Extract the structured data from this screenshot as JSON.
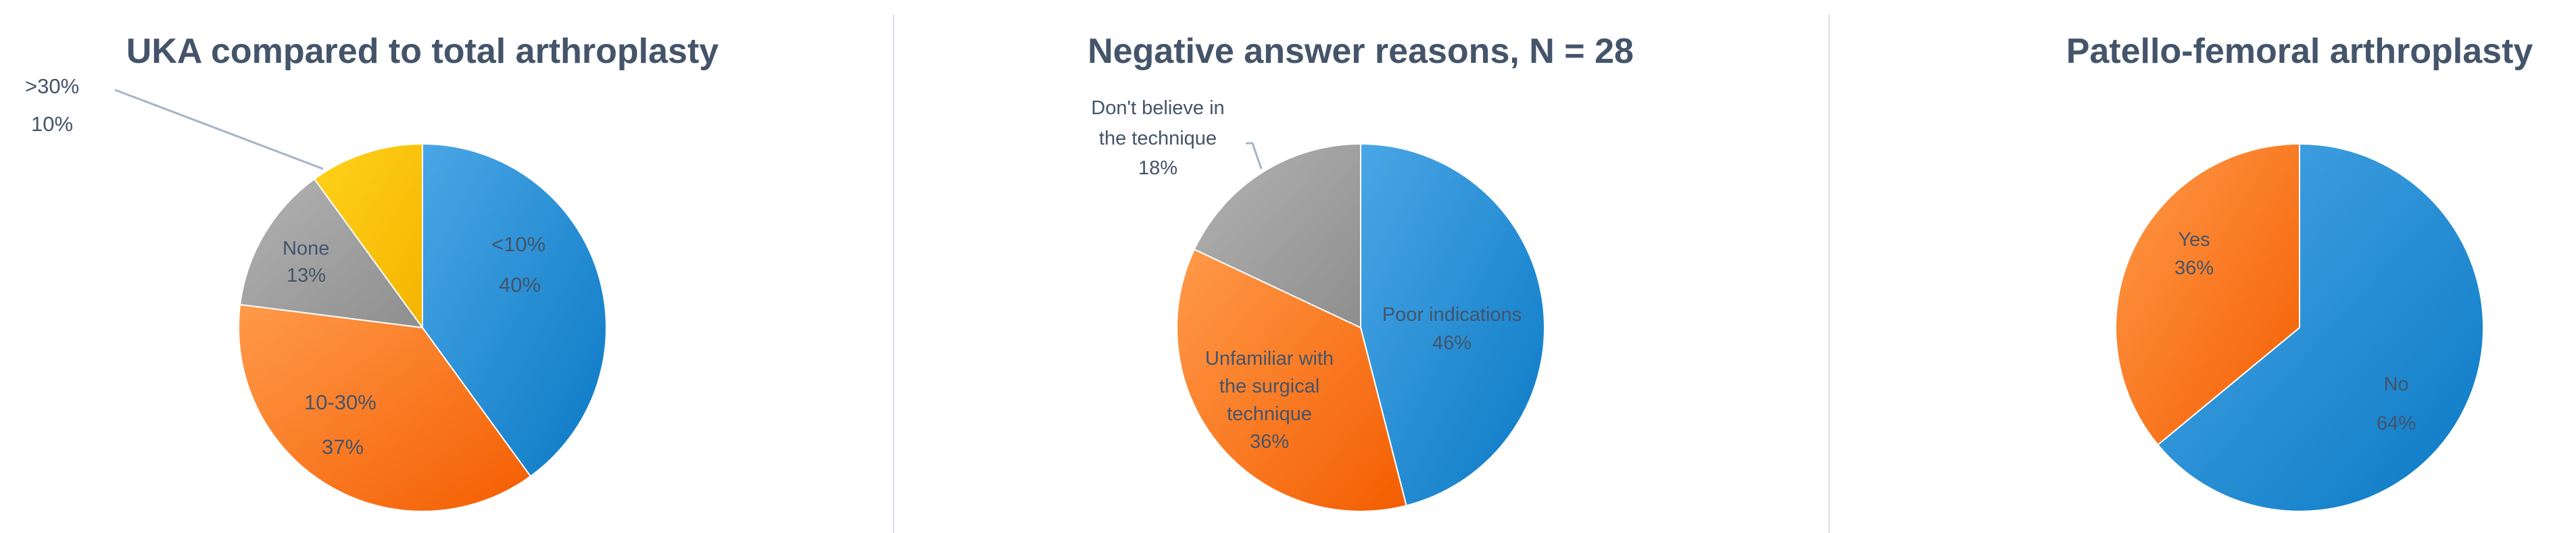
{
  "chart_data": [
    {
      "type": "pie",
      "title": "UKA compared to total arthroplasty",
      "unit": "%",
      "slices": [
        {
          "label": "<10%",
          "value": 40,
          "value_label": "40%",
          "color": "#1f8fd8"
        },
        {
          "label": "10-30%",
          "value": 37,
          "value_label": "37%",
          "color": "#fb7a22"
        },
        {
          "label": "None",
          "value": 13,
          "value_label": "13%",
          "color": "#a1a1a1"
        },
        {
          "label": ">30%",
          "value": 10,
          "value_label": "10%",
          "color": "#ffc000"
        }
      ]
    },
    {
      "type": "pie",
      "title": "Negative answer reasons, N = 28",
      "unit": "%",
      "slices": [
        {
          "label": "Poor indications",
          "value": 46,
          "value_label": "46%",
          "color": "#1f8fd8"
        },
        {
          "label": "Unfamiliar with the surgical technique",
          "value": 36,
          "value_label": "36%",
          "color": "#fb7a22"
        },
        {
          "label": "Don't believe in the technique",
          "value": 18,
          "value_label": "18%",
          "color": "#a1a1a1"
        }
      ]
    },
    {
      "type": "pie",
      "title": "Patello-femoral arthroplasty",
      "unit": "%",
      "slices": [
        {
          "label": "No",
          "value": 64,
          "value_label": "64%",
          "color": "#1f8fd8"
        },
        {
          "label": "Yes",
          "value": 36,
          "value_label": "36%",
          "color": "#fb7a22"
        }
      ]
    }
  ]
}
